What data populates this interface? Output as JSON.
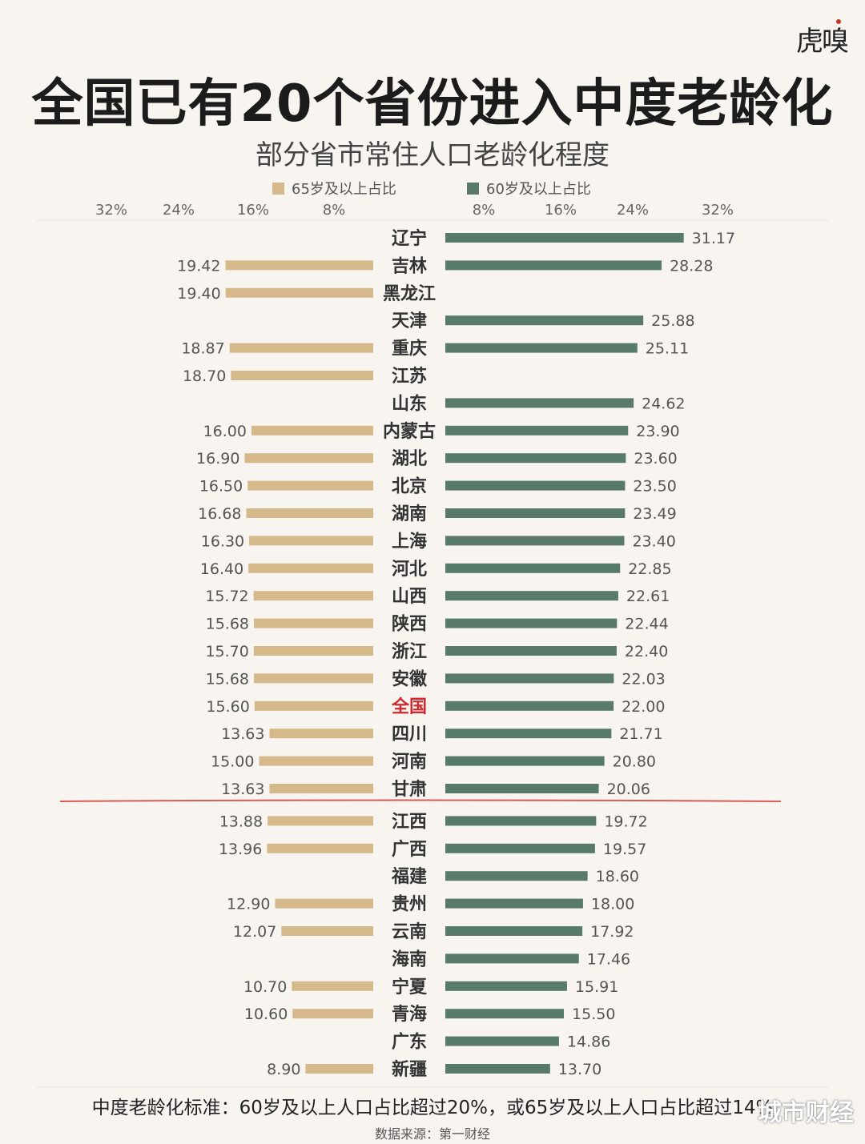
{
  "header": {
    "brand": "虎嗅",
    "title": "全国已有20个省份进入中度老龄化",
    "subtitle": "部分省市常住人口老龄化程度"
  },
  "legend": {
    "left_label": "65岁及以上占比",
    "right_label": "60岁及以上占比"
  },
  "colors": {
    "left_bar": "#d6b98a",
    "right_bar": "#587a68",
    "threshold_line": "#d95a5a",
    "highlight_label": "#d0282d",
    "label_dark": "#333333",
    "value_text": "#555555"
  },
  "chart_data": {
    "type": "bar",
    "orientation": "horizontal-butterfly",
    "title": "部分省市常住人口老龄化程度",
    "x_ticks_left": [
      "32%",
      "24%",
      "16%",
      "8%"
    ],
    "x_ticks_right": [
      "8%",
      "16%",
      "24%",
      "32%"
    ],
    "highlight_category": "全国",
    "categories": [
      "辽宁",
      "吉林",
      "黑龙江",
      "天津",
      "重庆",
      "江苏",
      "山东",
      "内蒙古",
      "湖北",
      "北京",
      "湖南",
      "上海",
      "河北",
      "山西",
      "陕西",
      "浙江",
      "安徽",
      "全国",
      "四川",
      "河南",
      "甘肃",
      "江西",
      "广西",
      "福建",
      "贵州",
      "云南",
      "海南",
      "宁夏",
      "青海",
      "广东",
      "新疆"
    ],
    "series": [
      {
        "name": "65岁及以上占比",
        "side": "left",
        "values": [
          null,
          19.42,
          19.4,
          null,
          18.87,
          18.7,
          null,
          16.0,
          16.9,
          16.5,
          16.68,
          16.3,
          16.4,
          15.72,
          15.68,
          15.7,
          15.68,
          15.6,
          13.63,
          15.0,
          13.63,
          13.88,
          13.96,
          null,
          12.9,
          12.07,
          null,
          10.7,
          10.6,
          null,
          8.9
        ],
        "labels": [
          "",
          "19.42",
          "19.40",
          "",
          "18.87",
          "18.70",
          "",
          "16.00",
          "16.90",
          "16.50",
          "16.68",
          "16.30",
          "16.40",
          "15.72",
          "15.68",
          "15.70",
          "15.68",
          "15.60",
          "13.63",
          "15.00",
          "13.63",
          "13.88",
          "13.96",
          "",
          "12.90",
          "12.07",
          "",
          "10.70",
          "10.60",
          "",
          "8.90"
        ]
      },
      {
        "name": "60岁及以上占比",
        "side": "right",
        "values": [
          31.17,
          28.28,
          null,
          25.88,
          25.11,
          null,
          24.62,
          23.9,
          23.6,
          23.5,
          23.49,
          23.4,
          22.85,
          22.61,
          22.44,
          22.4,
          22.03,
          22.0,
          21.71,
          20.8,
          20.06,
          19.72,
          19.57,
          18.6,
          18.0,
          17.92,
          17.46,
          15.91,
          15.5,
          14.86,
          13.7
        ],
        "labels": [
          "31.17",
          "28.28",
          "",
          "25.88",
          "25.11",
          "",
          "24.62",
          "23.90",
          "23.60",
          "23.50",
          "23.49",
          "23.40",
          "22.85",
          "22.61",
          "22.44",
          "22.40",
          "22.03",
          "22.00",
          "21.71",
          "20.80",
          "20.06",
          "19.72",
          "19.57",
          "18.60",
          "18.00",
          "17.92",
          "17.46",
          "15.91",
          "15.50",
          "14.86",
          "13.70"
        ]
      }
    ],
    "threshold_after_category": "甘肃"
  },
  "footer": {
    "note": "中度老龄化标准：60岁及以上人口占比超过20%，或65岁及以上人口占比超过14%",
    "source": "数据来源：第一财经",
    "watermark": "城市财经"
  }
}
